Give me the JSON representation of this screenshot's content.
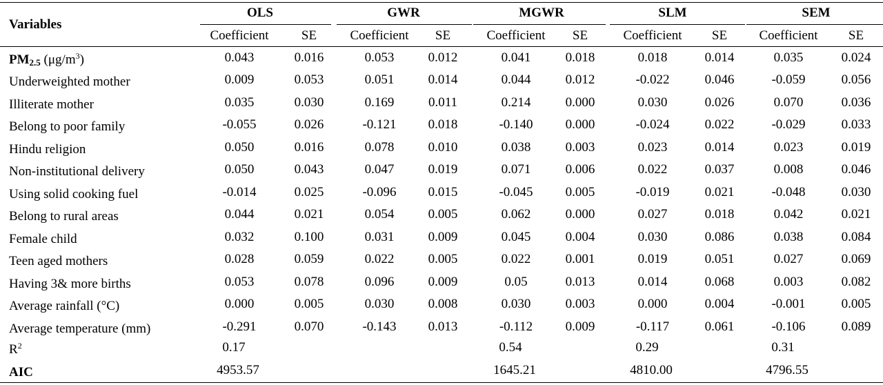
{
  "header": {
    "variables": "Variables",
    "models": [
      "OLS",
      "GWR",
      "MGWR",
      "SLM",
      "SEM"
    ],
    "coef": "Coefficient",
    "se": "SE"
  },
  "pm_row": {
    "label_main": "PM",
    "label_sub": "2.5",
    "label_unit": " (μg/m",
    "label_unit_sup": "3",
    "label_unit_close": ")",
    "values": [
      "0.043",
      "0.016",
      "0.053",
      "0.012",
      "0.041",
      "0.018",
      "0.018",
      "0.014",
      "0.035",
      "0.024"
    ]
  },
  "rows": [
    {
      "label": "Underweighted mother",
      "values": [
        "0.009",
        "0.053",
        "0.051",
        "0.014",
        "0.044",
        "0.012",
        "-0.022",
        "0.046",
        "-0.059",
        "0.056"
      ]
    },
    {
      "label": "Illiterate mother",
      "values": [
        "0.035",
        "0.030",
        "0.169",
        "0.011",
        "0.214",
        "0.000",
        "0.030",
        "0.026",
        "0.070",
        "0.036"
      ]
    },
    {
      "label": "Belong to poor family",
      "values": [
        "-0.055",
        "0.026",
        "-0.121",
        "0.018",
        "-0.140",
        "0.000",
        "-0.024",
        "0.022",
        "-0.029",
        "0.033"
      ]
    },
    {
      "label": "Hindu religion",
      "values": [
        "0.050",
        "0.016",
        "0.078",
        "0.010",
        "0.038",
        "0.003",
        "0.023",
        "0.014",
        "0.023",
        "0.019"
      ]
    },
    {
      "label": "Non-institutional delivery",
      "values": [
        "0.050",
        "0.043",
        "0.047",
        "0.019",
        "0.071",
        "0.006",
        "0.022",
        "0.037",
        "0.008",
        "0.046"
      ]
    },
    {
      "label": "Using solid cooking fuel",
      "values": [
        "-0.014",
        "0.025",
        "-0.096",
        "0.015",
        "-0.045",
        "0.005",
        "-0.019",
        "0.021",
        "-0.048",
        "0.030"
      ]
    },
    {
      "label": "Belong to rural areas",
      "values": [
        "0.044",
        "0.021",
        "0.054",
        "0.005",
        "0.062",
        "0.000",
        "0.027",
        "0.018",
        "0.042",
        "0.021"
      ]
    },
    {
      "label": "Female child",
      "values": [
        "0.032",
        "0.100",
        "0.031",
        "0.009",
        "0.045",
        "0.004",
        "0.030",
        "0.086",
        "0.038",
        "0.084"
      ]
    },
    {
      "label": "Teen aged mothers",
      "values": [
        "0.028",
        "0.059",
        "0.022",
        "0.005",
        "0.022",
        "0.001",
        "0.019",
        "0.051",
        "0.027",
        "0.069"
      ]
    },
    {
      "label": "Having 3& more births",
      "values": [
        "0.053",
        "0.078",
        "0.096",
        "0.009",
        "0.05",
        "0.013",
        "0.014",
        "0.068",
        "0.003",
        "0.082"
      ]
    },
    {
      "label": "Average rainfall (°C)",
      "values": [
        "0.000",
        "0.005",
        "0.030",
        "0.008",
        "0.030",
        "0.003",
        "0.000",
        "0.004",
        "-0.001",
        "0.005"
      ]
    },
    {
      "label": "Average temperature (mm)",
      "values": [
        "-0.291",
        "0.070",
        "-0.143",
        "0.013",
        "-0.112",
        "0.009",
        "-0.117",
        "0.061",
        "-0.106",
        "0.089"
      ]
    }
  ],
  "r2_row": {
    "label": "R",
    "label_sup": "2",
    "values": [
      "0.17",
      "",
      "0.54",
      "0.29",
      "0.31"
    ]
  },
  "aic_row": {
    "label": "AIC",
    "values": [
      "4953.57",
      "",
      "1645.21",
      "4810.00",
      "4796.55"
    ]
  }
}
